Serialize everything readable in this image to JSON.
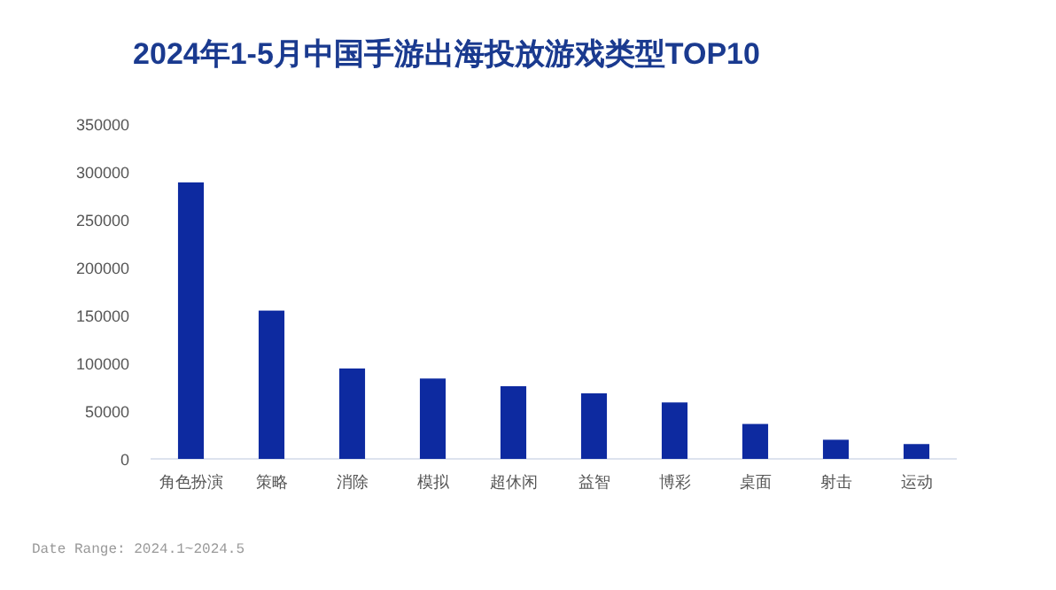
{
  "chart_data": {
    "type": "bar",
    "title": "2024年1-5月中国手游出海投放游戏类型TOP10",
    "categories": [
      "角色扮演",
      "策略",
      "消除",
      "模拟",
      "超休闲",
      "益智",
      "博彩",
      "桌面",
      "射击",
      "运动"
    ],
    "values": [
      289000,
      155000,
      94500,
      84000,
      76000,
      68500,
      59000,
      36500,
      20000,
      15500
    ],
    "color": "#0d2aa0",
    "ylim": [
      0,
      350000
    ],
    "yticks": [
      0,
      50000,
      100000,
      150000,
      200000,
      250000,
      300000,
      350000
    ],
    "grid": false,
    "annotations": [
      "Date Range: 2024.1~2024.5"
    ]
  }
}
